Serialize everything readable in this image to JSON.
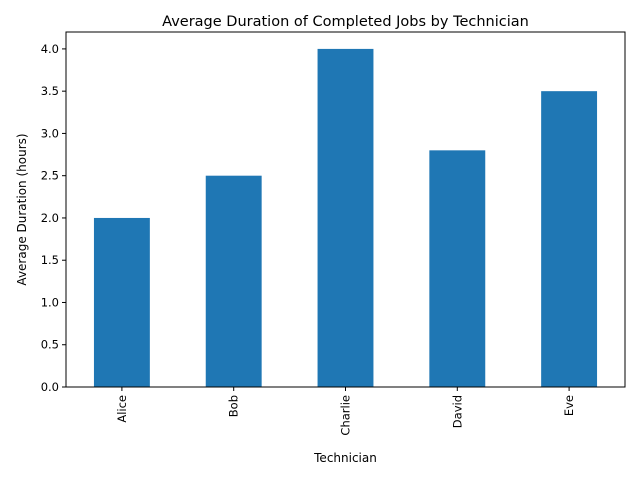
{
  "chart_data": {
    "type": "bar",
    "title": "Average Duration of Completed Jobs by Technician",
    "xlabel": "Technician",
    "ylabel": "Average Duration (hours)",
    "categories": [
      "Alice",
      "Bob",
      "Charlie",
      "David",
      "Eve"
    ],
    "values": [
      2.0,
      2.5,
      4.0,
      2.8,
      3.5
    ],
    "ylim": [
      0,
      4.2
    ],
    "yticks": [
      "0.0",
      "0.5",
      "1.0",
      "1.5",
      "2.0",
      "2.5",
      "3.0",
      "3.5",
      "4.0"
    ],
    "grid": false,
    "legend": "none",
    "bar_color": "#1f77b4"
  }
}
